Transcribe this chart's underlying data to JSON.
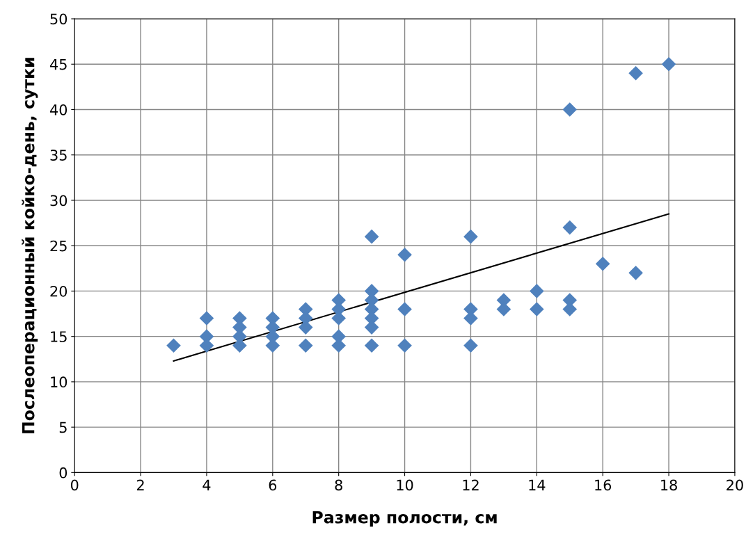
{
  "chart_data": {
    "type": "scatter",
    "xlabel": "Размер полости, см",
    "ylabel": "Послеоперационный койко-день, сутки",
    "xlim": [
      0,
      20
    ],
    "xticks": [
      0,
      2,
      4,
      6,
      8,
      10,
      12,
      14,
      16,
      18,
      20
    ],
    "ylim": [
      0,
      50
    ],
    "yticks": [
      0,
      5,
      10,
      15,
      20,
      25,
      30,
      35,
      40,
      45,
      50
    ],
    "grid": true,
    "legend": false,
    "series": [
      {
        "color": "#4f81bd",
        "marker": "diamond",
        "x": [
          3,
          4,
          4,
          4,
          5,
          5,
          5,
          5,
          6,
          6,
          6,
          6,
          7,
          7,
          7,
          7,
          8,
          8,
          8,
          8,
          8,
          9,
          9,
          9,
          9,
          9,
          9,
          9,
          10,
          10,
          10,
          12,
          12,
          12,
          12,
          13,
          13,
          14,
          14,
          15,
          15,
          15,
          15,
          16,
          17,
          17,
          18
        ],
        "values": [
          14,
          17,
          15,
          14,
          17,
          16,
          15,
          14,
          17,
          16,
          15,
          14,
          18,
          17,
          16,
          14,
          19,
          18,
          17,
          15,
          14,
          26,
          20,
          19,
          18,
          17,
          16,
          14,
          24,
          18,
          14,
          26,
          18,
          17,
          14,
          19,
          18,
          20,
          18,
          40,
          27,
          19,
          18,
          23,
          44,
          22,
          45
        ]
      },
      {
        "type": "line",
        "color": "#000000",
        "marker": "none",
        "line_style": "solid",
        "x": [
          3,
          18
        ],
        "values": [
          12.3,
          28.5
        ]
      }
    ]
  }
}
